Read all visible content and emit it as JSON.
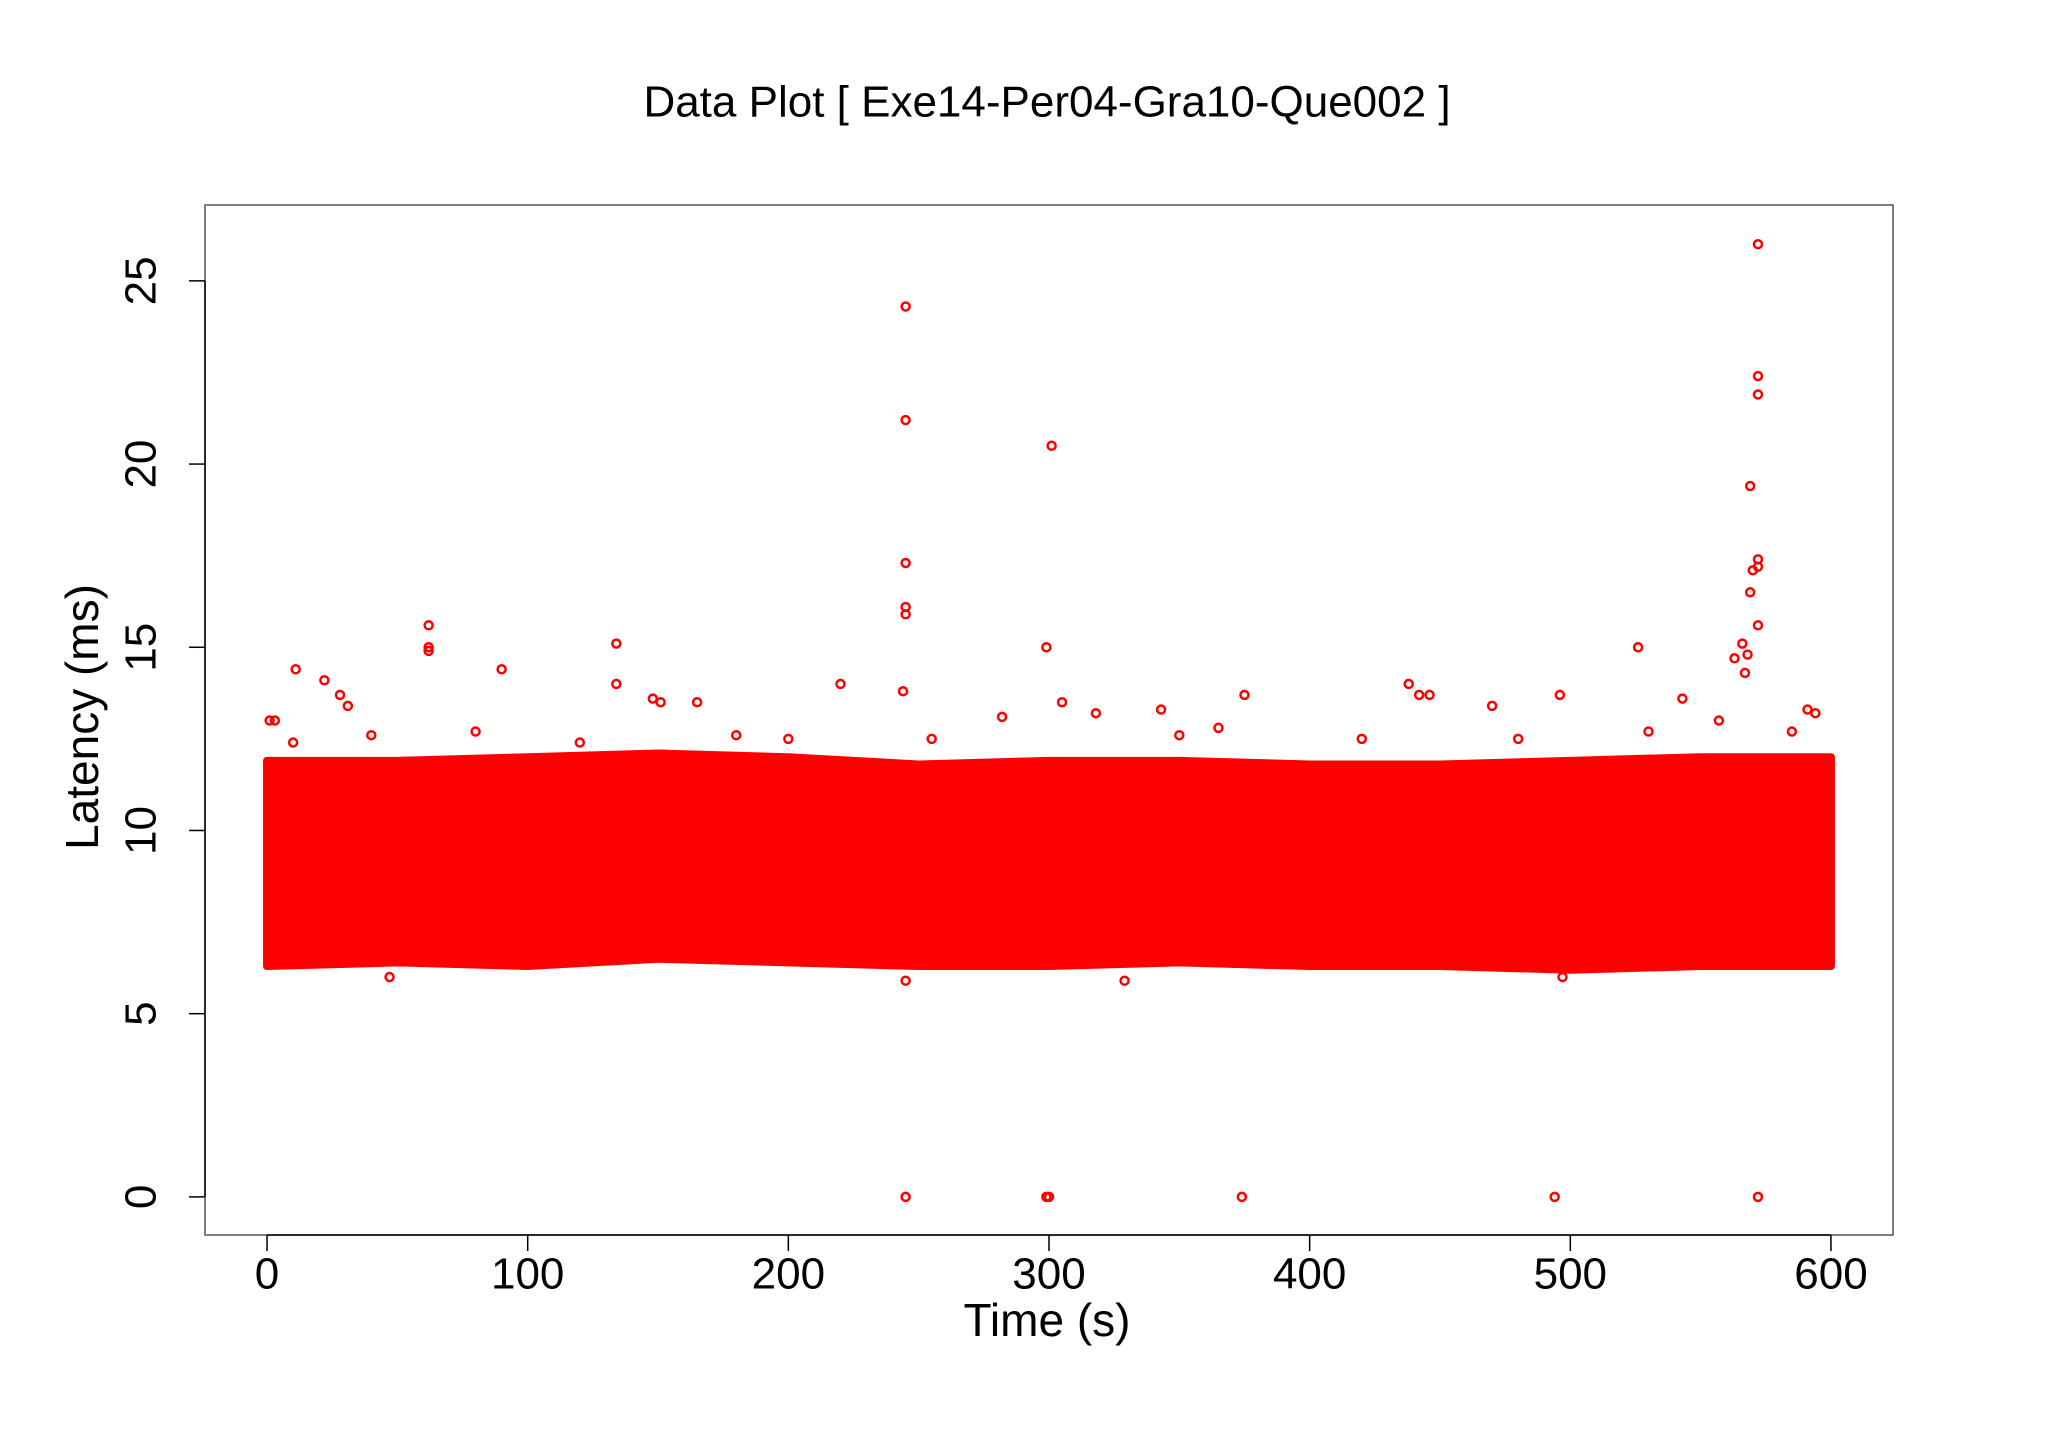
{
  "chart_data": {
    "type": "scatter",
    "title": "Data Plot [ Exe14-Per04-Gra10-Que002 ]",
    "x_label": "Time (s)",
    "y_label": "Latency (ms)",
    "xlim": [
      -23.8,
      623.8
    ],
    "ylim": [
      -1.04,
      27.07
    ],
    "xticks": [
      0,
      100,
      200,
      300,
      400,
      500,
      600
    ],
    "yticks": [
      0,
      5,
      10,
      15,
      20,
      25
    ],
    "color": "#ff0000",
    "band": {
      "x": [
        0,
        50,
        100,
        150,
        200,
        250,
        300,
        350,
        400,
        450,
        500,
        550,
        600
      ],
      "high": [
        11.9,
        11.9,
        12.0,
        12.1,
        12.0,
        11.8,
        11.9,
        11.9,
        11.8,
        11.8,
        11.9,
        12.0,
        12.0
      ],
      "low": [
        6.3,
        6.4,
        6.3,
        6.5,
        6.4,
        6.3,
        6.3,
        6.4,
        6.3,
        6.3,
        6.2,
        6.3,
        6.3
      ]
    },
    "x": [
      245,
      245,
      245,
      245,
      245,
      244,
      301,
      299,
      572,
      572,
      572,
      569,
      572,
      572,
      570,
      569,
      572,
      566,
      563,
      568,
      567,
      62,
      62,
      62,
      134,
      134,
      90,
      11,
      526,
      438,
      442,
      446,
      375,
      496,
      220,
      1,
      3,
      22,
      28,
      31,
      148,
      151,
      165,
      282,
      305,
      318,
      343,
      470,
      591,
      594,
      543,
      557,
      245,
      299,
      300,
      374,
      494,
      572,
      245,
      329,
      497,
      47,
      10,
      40,
      80,
      120,
      180,
      200,
      255,
      350,
      365,
      420,
      480,
      530,
      585
    ],
    "values": [
      24.3,
      21.2,
      17.3,
      16.1,
      15.9,
      13.8,
      20.5,
      15,
      26,
      22.4,
      21.9,
      19.4,
      17.4,
      17.2,
      17.1,
      16.5,
      15.6,
      15.1,
      14.7,
      14.8,
      14.3,
      15.6,
      15,
      14.9,
      15.1,
      14,
      14.4,
      14.4,
      15,
      14,
      13.7,
      13.7,
      13.7,
      13.7,
      14,
      13,
      13,
      14.1,
      13.7,
      13.4,
      13.6,
      13.5,
      13.5,
      13.1,
      13.5,
      13.2,
      13.3,
      13.4,
      13.3,
      13.2,
      13.6,
      13,
      0,
      0,
      0,
      0,
      0,
      0,
      5.9,
      5.9,
      6.0,
      6.0,
      12.4,
      12.6,
      12.7,
      12.4,
      12.6,
      12.5,
      12.5,
      12.6,
      12.8,
      12.5,
      12.5,
      12.7,
      12.7
    ]
  }
}
